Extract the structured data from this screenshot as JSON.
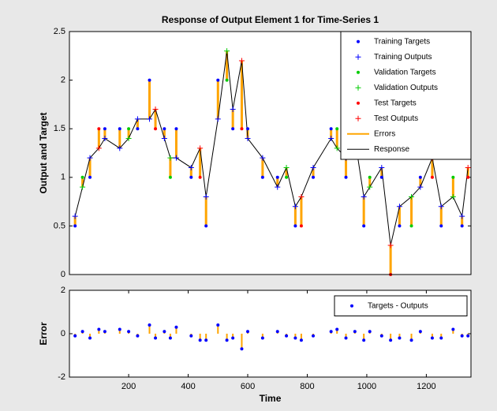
{
  "chart_data": [
    {
      "type": "response",
      "title": "Response of Output Element 1 for Time-Series 1",
      "y_label": "Output and Target",
      "xlim": [
        1,
        1350
      ],
      "ylim": [
        0,
        2.5
      ],
      "yticks": [
        0,
        0.5,
        1,
        1.5,
        2,
        2.5
      ],
      "legend": "upper right",
      "series": [
        {
          "name": "Training Targets",
          "color": "#0000ff",
          "style": "dot",
          "x": [
            20,
            70,
            120,
            170,
            230,
            270,
            320,
            360,
            410,
            460,
            500,
            550,
            600,
            650,
            700,
            760,
            820,
            880,
            930,
            990,
            1050,
            1110,
            1180,
            1250,
            1320
          ],
          "values": [
            0.5,
            1.0,
            1.5,
            1.5,
            1.5,
            2.0,
            1.5,
            1.5,
            1.0,
            0.5,
            2.0,
            1.5,
            1.5,
            1.0,
            1.0,
            0.5,
            1.0,
            1.5,
            1.0,
            0.5,
            1.0,
            0.5,
            1.0,
            0.5,
            0.5
          ]
        },
        {
          "name": "Training Outputs",
          "color": "#0000ff",
          "style": "plus",
          "x": [
            20,
            70,
            120,
            170,
            230,
            270,
            320,
            360,
            410,
            460,
            500,
            550,
            600,
            650,
            700,
            760,
            820,
            880,
            930,
            990,
            1050,
            1110,
            1180,
            1250,
            1320
          ],
          "values": [
            0.6,
            1.2,
            1.4,
            1.3,
            1.6,
            1.6,
            1.4,
            1.2,
            1.1,
            0.8,
            1.6,
            1.7,
            1.4,
            1.2,
            0.9,
            0.7,
            1.1,
            1.4,
            1.2,
            0.8,
            1.1,
            0.7,
            0.9,
            0.7,
            0.6
          ]
        },
        {
          "name": "Validation Targets",
          "color": "#00cc00",
          "style": "dot",
          "x": [
            45,
            200,
            340,
            530,
            730,
            900,
            1010,
            1150,
            1290
          ],
          "values": [
            1.0,
            1.5,
            1.0,
            2.0,
            1.0,
            1.5,
            1.0,
            0.5,
            1.0
          ]
        },
        {
          "name": "Validation Outputs",
          "color": "#00cc00",
          "style": "plus",
          "x": [
            45,
            200,
            340,
            530,
            730,
            900,
            1010,
            1150,
            1290
          ],
          "values": [
            0.9,
            1.4,
            1.2,
            2.3,
            1.1,
            1.3,
            0.9,
            0.8,
            0.8
          ]
        },
        {
          "name": "Test Targets",
          "color": "#ff0000",
          "style": "dot",
          "x": [
            100,
            290,
            440,
            580,
            780,
            960,
            1080,
            1220,
            1340
          ],
          "values": [
            1.5,
            1.5,
            1.0,
            1.5,
            0.5,
            1.5,
            0,
            1.0,
            1.0
          ]
        },
        {
          "name": "Test Outputs",
          "color": "#ff0000",
          "style": "plus",
          "x": [
            100,
            290,
            440,
            580,
            780,
            960,
            1080,
            1220,
            1340
          ],
          "values": [
            1.3,
            1.7,
            1.3,
            2.2,
            0.8,
            1.4,
            0.3,
            1.2,
            1.1
          ]
        },
        {
          "name": "Errors",
          "color": "#ffa500",
          "style": "stem",
          "x": [
            20,
            45,
            70,
            100,
            120,
            170,
            200,
            230,
            270,
            290,
            320,
            340,
            360,
            410,
            440,
            460,
            500,
            530,
            550,
            580,
            600,
            650,
            700,
            730,
            760,
            780,
            820,
            880,
            900,
            930,
            960,
            990,
            1010,
            1050,
            1080,
            1110,
            1150,
            1180,
            1220,
            1250,
            1290,
            1320,
            1340
          ],
          "values": [
            -0.1,
            0.1,
            -0.2,
            0.2,
            0.1,
            0.2,
            0.1,
            -0.1,
            0.4,
            -0.2,
            0.1,
            -0.2,
            0.3,
            -0.1,
            -0.3,
            -0.3,
            0.4,
            -0.3,
            -0.2,
            -0.7,
            0.1,
            -0.2,
            0.1,
            -0.1,
            -0.2,
            -0.3,
            -0.1,
            0.1,
            0.2,
            -0.2,
            0.1,
            -0.3,
            0.1,
            -0.1,
            -0.3,
            -0.2,
            -0.3,
            0.1,
            -0.2,
            -0.2,
            0.2,
            -0.1,
            -0.1
          ]
        },
        {
          "name": "Response",
          "color": "#000000",
          "style": "line",
          "x": [
            20,
            45,
            70,
            100,
            120,
            170,
            200,
            230,
            270,
            290,
            320,
            340,
            360,
            410,
            440,
            460,
            500,
            530,
            550,
            580,
            600,
            650,
            700,
            730,
            760,
            780,
            820,
            880,
            900,
            930,
            960,
            990,
            1010,
            1050,
            1080,
            1110,
            1150,
            1180,
            1220,
            1250,
            1290,
            1320,
            1340
          ],
          "values": [
            0.6,
            0.9,
            1.2,
            1.3,
            1.4,
            1.3,
            1.4,
            1.6,
            1.6,
            1.7,
            1.4,
            1.2,
            1.2,
            1.1,
            1.3,
            0.8,
            1.6,
            2.3,
            1.7,
            2.2,
            1.4,
            1.2,
            0.9,
            1.1,
            0.7,
            0.8,
            1.1,
            1.4,
            1.3,
            1.2,
            1.4,
            0.8,
            0.9,
            1.1,
            0.3,
            0.7,
            0.8,
            0.9,
            1.2,
            0.7,
            0.8,
            0.6,
            1.1
          ]
        }
      ]
    },
    {
      "type": "error",
      "y_label": "Error",
      "x_label": "Time",
      "xlim": [
        1,
        1350
      ],
      "xticks": [
        200,
        400,
        600,
        800,
        1000,
        1200
      ],
      "ylim": [
        -2,
        2
      ],
      "yticks": [
        -2,
        0,
        2
      ],
      "legend": "upper right",
      "series": [
        {
          "name": "Targets - Outputs",
          "color": "#0000ff",
          "stem_color": "#ffa500",
          "style": "stem-dot",
          "x": [
            20,
            45,
            70,
            100,
            120,
            170,
            200,
            230,
            270,
            290,
            320,
            340,
            360,
            410,
            440,
            460,
            500,
            530,
            550,
            580,
            600,
            650,
            700,
            730,
            760,
            780,
            820,
            880,
            900,
            930,
            960,
            990,
            1010,
            1050,
            1080,
            1110,
            1150,
            1180,
            1220,
            1250,
            1290,
            1320,
            1340
          ],
          "values": [
            -0.1,
            0.1,
            -0.2,
            0.2,
            0.1,
            0.2,
            0.1,
            -0.1,
            0.4,
            -0.2,
            0.1,
            -0.2,
            0.3,
            -0.1,
            -0.3,
            -0.3,
            0.4,
            -0.3,
            -0.2,
            -0.7,
            0.1,
            -0.2,
            0.1,
            -0.1,
            -0.2,
            -0.3,
            -0.1,
            0.1,
            0.2,
            -0.2,
            0.1,
            -0.3,
            0.1,
            -0.1,
            -0.3,
            -0.2,
            -0.3,
            0.1,
            -0.2,
            -0.2,
            0.2,
            -0.1,
            -0.1
          ]
        }
      ]
    }
  ]
}
